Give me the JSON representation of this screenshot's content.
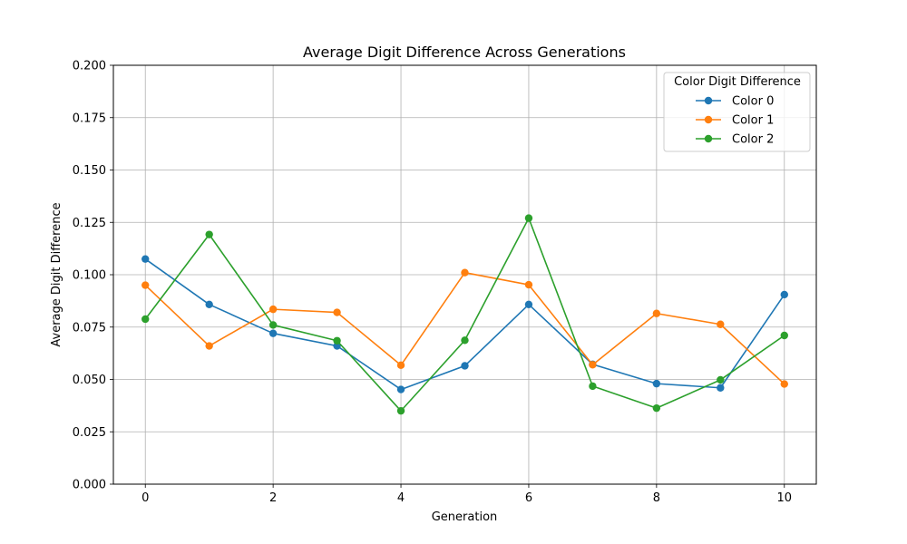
{
  "chart_data": {
    "type": "line",
    "title": "Average Digit Difference Across Generations",
    "xlabel": "Generation",
    "ylabel": "Average Digit Difference",
    "x": [
      0,
      1,
      2,
      3,
      4,
      5,
      6,
      7,
      8,
      9,
      10
    ],
    "xlim": [
      -0.5,
      10.5
    ],
    "ylim": [
      0,
      0.2
    ],
    "xticks": [
      0,
      2,
      4,
      6,
      8,
      10
    ],
    "xtick_labels": [
      "0",
      "2",
      "4",
      "6",
      "8",
      "10"
    ],
    "yticks": [
      0,
      0.025,
      0.05,
      0.075,
      0.1,
      0.125,
      0.15,
      0.175,
      0.2
    ],
    "ytick_labels": [
      "0.000",
      "0.025",
      "0.050",
      "0.075",
      "0.100",
      "0.125",
      "0.150",
      "0.175",
      "0.200"
    ],
    "grid": true,
    "legend": {
      "title": "Color Digit Difference",
      "position": "top-right"
    },
    "series": [
      {
        "name": "Color 0",
        "color": "#1f77b4",
        "values": [
          0.1075,
          0.0858,
          0.072,
          0.066,
          0.0452,
          0.0565,
          0.0858,
          0.0572,
          0.048,
          0.046,
          0.0905
        ]
      },
      {
        "name": "Color 1",
        "color": "#ff7f0e",
        "values": [
          0.095,
          0.066,
          0.0835,
          0.082,
          0.0568,
          0.101,
          0.0952,
          0.057,
          0.0815,
          0.0763,
          0.0478
        ]
      },
      {
        "name": "Color 2",
        "color": "#2ca02c",
        "values": [
          0.0788,
          0.1192,
          0.076,
          0.0685,
          0.035,
          0.0687,
          0.127,
          0.0468,
          0.0363,
          0.0498,
          0.071
        ]
      }
    ]
  }
}
